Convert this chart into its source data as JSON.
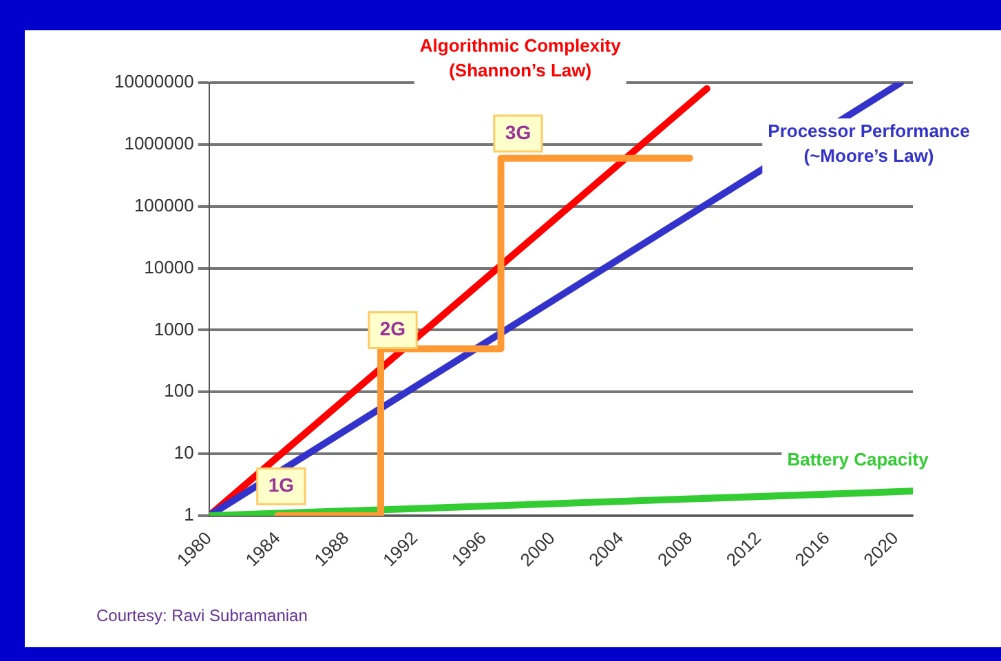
{
  "chart_data": {
    "type": "line",
    "log": "y",
    "grid": "y",
    "legend": false,
    "marker": "none",
    "line_style": "solid",
    "xlim": [
      1980,
      2021
    ],
    "xticks": [
      1980,
      1984,
      1988,
      1992,
      1996,
      2000,
      2004,
      2008,
      2012,
      2016,
      2020
    ],
    "ylim": [
      1,
      10000000
    ],
    "yticks": [
      1,
      10,
      100,
      1000,
      10000,
      100000,
      1000000,
      10000000
    ],
    "series": [
      {
        "name": "Algorithmic Complexity (Shannon’s Law)",
        "color": "#ff0000",
        "x": [
          1980,
          2009
        ],
        "values": [
          1,
          8000000
        ]
      },
      {
        "name": "Processor Performance (~Moore’s Law)",
        "color": "#3333cc",
        "x": [
          1980,
          2020.3
        ],
        "values": [
          1,
          10000000
        ]
      },
      {
        "name": "Battery Capacity",
        "color": "#33cc33",
        "x": [
          1980,
          2021
        ],
        "values": [
          1,
          2.5
        ]
      },
      {
        "color": "#ff9933",
        "x": [
          1984,
          1990,
          1990,
          1997,
          1997,
          2008
        ],
        "values": [
          1,
          1,
          500,
          500,
          600000,
          600000
        ]
      }
    ],
    "annotations": [
      {
        "text": "1G",
        "x": 1984.2,
        "y": 3
      },
      {
        "text": "2G",
        "x": 1990.7,
        "y": 1000
      },
      {
        "text": "3G",
        "x": 1998,
        "y": 1500000
      },
      "Courtesy: Ravi Subramanian"
    ]
  }
}
